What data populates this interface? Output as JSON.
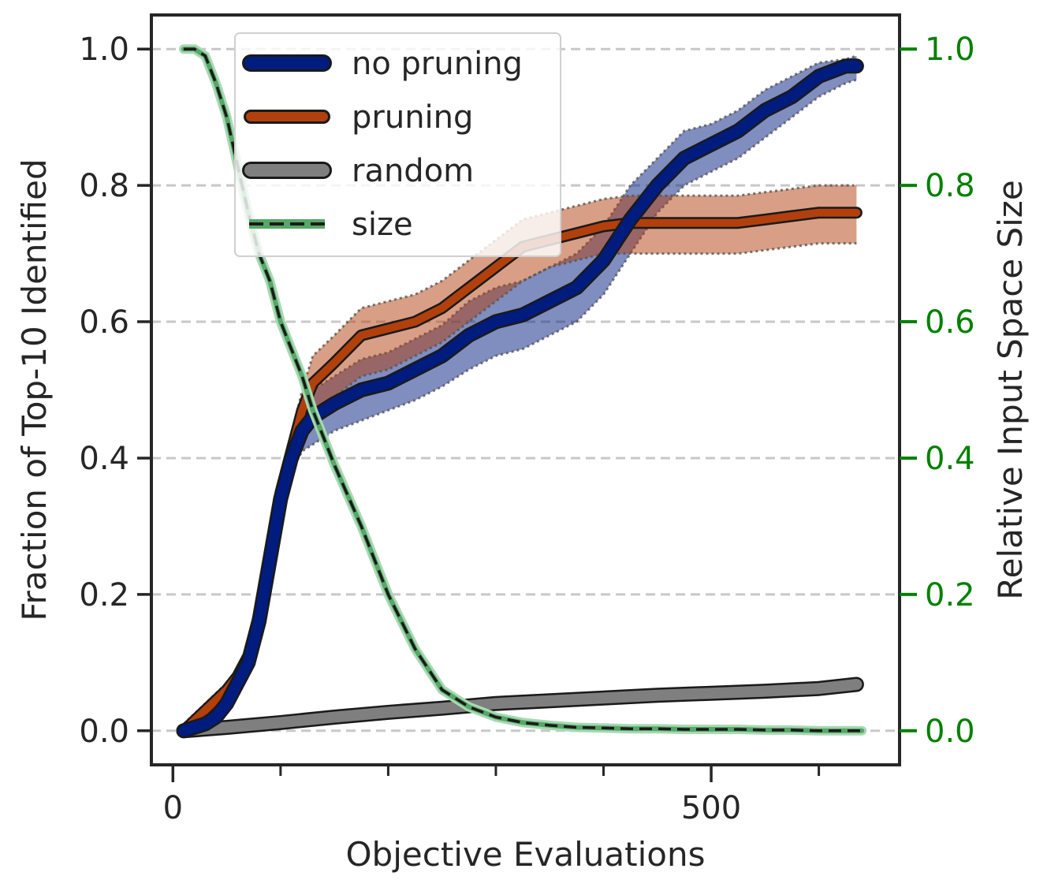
{
  "chart_data": {
    "type": "line",
    "xlabel": "Objective Evaluations",
    "ylabel": "Fraction of Top-10 Identified",
    "y2label": "Relative Input Space Size",
    "xlim": [
      -20,
      675
    ],
    "ylim": [
      -0.05,
      1.05
    ],
    "y2lim": [
      -0.05,
      1.05
    ],
    "xticks_major": [
      0,
      500
    ],
    "xticks_minor": [
      0,
      100,
      200,
      300,
      400,
      500,
      600
    ],
    "yticks": [
      0.0,
      0.2,
      0.4,
      0.6,
      0.8,
      1.0
    ],
    "ytick_labels": [
      "0.0",
      "0.2",
      "0.4",
      "0.6",
      "0.8",
      "1.0"
    ],
    "y2ticks": [
      0.0,
      0.2,
      0.4,
      0.6,
      0.8,
      1.0
    ],
    "y2tick_labels": [
      "0.0",
      "0.2",
      "0.4",
      "0.6",
      "0.8",
      "1.0"
    ],
    "xtick_labels": [
      "0",
      "500"
    ],
    "grid": "horizontal dashed",
    "legend_position": "upper-left",
    "series": [
      {
        "name": "no pruning",
        "color": "#001c7f",
        "x": [
          10,
          20,
          30,
          40,
          50,
          60,
          70,
          80,
          90,
          100,
          110,
          120,
          130,
          140,
          150,
          175,
          200,
          225,
          250,
          275,
          300,
          325,
          350,
          375,
          400,
          425,
          450,
          475,
          500,
          525,
          550,
          575,
          600,
          625,
          635
        ],
        "y": [
          0.0,
          0.005,
          0.01,
          0.02,
          0.04,
          0.07,
          0.1,
          0.16,
          0.25,
          0.34,
          0.4,
          0.44,
          0.46,
          0.47,
          0.48,
          0.5,
          0.51,
          0.53,
          0.55,
          0.58,
          0.6,
          0.61,
          0.63,
          0.65,
          0.69,
          0.75,
          0.8,
          0.84,
          0.86,
          0.88,
          0.91,
          0.93,
          0.96,
          0.975,
          0.975
        ],
        "lower": [
          0.0,
          0.0,
          0.0,
          0.01,
          0.025,
          0.05,
          0.08,
          0.14,
          0.23,
          0.32,
          0.38,
          0.41,
          0.42,
          0.43,
          0.44,
          0.455,
          0.47,
          0.485,
          0.505,
          0.53,
          0.55,
          0.56,
          0.58,
          0.6,
          0.64,
          0.7,
          0.76,
          0.8,
          0.82,
          0.84,
          0.87,
          0.9,
          0.93,
          0.95,
          0.955
        ],
        "upper": [
          0.01,
          0.015,
          0.025,
          0.035,
          0.055,
          0.09,
          0.12,
          0.18,
          0.27,
          0.36,
          0.42,
          0.47,
          0.5,
          0.51,
          0.52,
          0.545,
          0.555,
          0.575,
          0.595,
          0.63,
          0.65,
          0.66,
          0.68,
          0.7,
          0.74,
          0.8,
          0.84,
          0.88,
          0.89,
          0.91,
          0.94,
          0.96,
          0.98,
          0.985,
          0.99
        ]
      },
      {
        "name": "pruning",
        "color": "#b1400d",
        "x": [
          10,
          20,
          30,
          40,
          50,
          60,
          70,
          80,
          90,
          100,
          110,
          120,
          130,
          140,
          150,
          175,
          200,
          225,
          250,
          275,
          300,
          325,
          350,
          375,
          400,
          425,
          450,
          475,
          500,
          525,
          550,
          575,
          600,
          625,
          635
        ],
        "y": [
          0.0,
          0.015,
          0.03,
          0.045,
          0.06,
          0.08,
          0.11,
          0.17,
          0.26,
          0.35,
          0.41,
          0.47,
          0.51,
          0.525,
          0.54,
          0.58,
          0.59,
          0.6,
          0.62,
          0.65,
          0.68,
          0.71,
          0.72,
          0.73,
          0.74,
          0.745,
          0.745,
          0.745,
          0.745,
          0.745,
          0.75,
          0.755,
          0.76,
          0.76,
          0.76
        ],
        "lower": [
          0.0,
          0.005,
          0.02,
          0.035,
          0.05,
          0.07,
          0.1,
          0.16,
          0.25,
          0.34,
          0.39,
          0.44,
          0.47,
          0.48,
          0.49,
          0.52,
          0.53,
          0.55,
          0.57,
          0.6,
          0.63,
          0.66,
          0.68,
          0.69,
          0.7,
          0.7,
          0.7,
          0.7,
          0.7,
          0.7,
          0.705,
          0.71,
          0.715,
          0.715,
          0.715
        ],
        "upper": [
          0.01,
          0.025,
          0.04,
          0.055,
          0.07,
          0.09,
          0.12,
          0.18,
          0.27,
          0.36,
          0.43,
          0.5,
          0.55,
          0.565,
          0.58,
          0.62,
          0.63,
          0.64,
          0.66,
          0.69,
          0.72,
          0.75,
          0.76,
          0.77,
          0.78,
          0.785,
          0.785,
          0.785,
          0.785,
          0.785,
          0.79,
          0.795,
          0.8,
          0.8,
          0.8
        ]
      },
      {
        "name": "random",
        "color": "#7f7f7f",
        "x": [
          10,
          50,
          100,
          150,
          200,
          250,
          300,
          350,
          400,
          450,
          500,
          550,
          600,
          635
        ],
        "y": [
          0.0,
          0.005,
          0.012,
          0.02,
          0.027,
          0.033,
          0.04,
          0.044,
          0.048,
          0.052,
          0.055,
          0.058,
          0.062,
          0.068
        ]
      },
      {
        "name": "size",
        "axis": "right",
        "color": "#55a868",
        "x": [
          10,
          20,
          30,
          40,
          50,
          60,
          70,
          80,
          90,
          100,
          110,
          120,
          130,
          140,
          150,
          175,
          200,
          225,
          250,
          275,
          300,
          325,
          350,
          375,
          400,
          425,
          450,
          475,
          500,
          525,
          550,
          575,
          600,
          625,
          640
        ],
        "y": [
          1.0,
          1.0,
          0.99,
          0.95,
          0.9,
          0.83,
          0.76,
          0.7,
          0.66,
          0.6,
          0.56,
          0.52,
          0.47,
          0.43,
          0.39,
          0.3,
          0.2,
          0.12,
          0.06,
          0.035,
          0.02,
          0.012,
          0.008,
          0.005,
          0.004,
          0.003,
          0.003,
          0.002,
          0.002,
          0.002,
          0.001,
          0.001,
          0.0,
          0.0,
          0.0
        ]
      }
    ]
  }
}
